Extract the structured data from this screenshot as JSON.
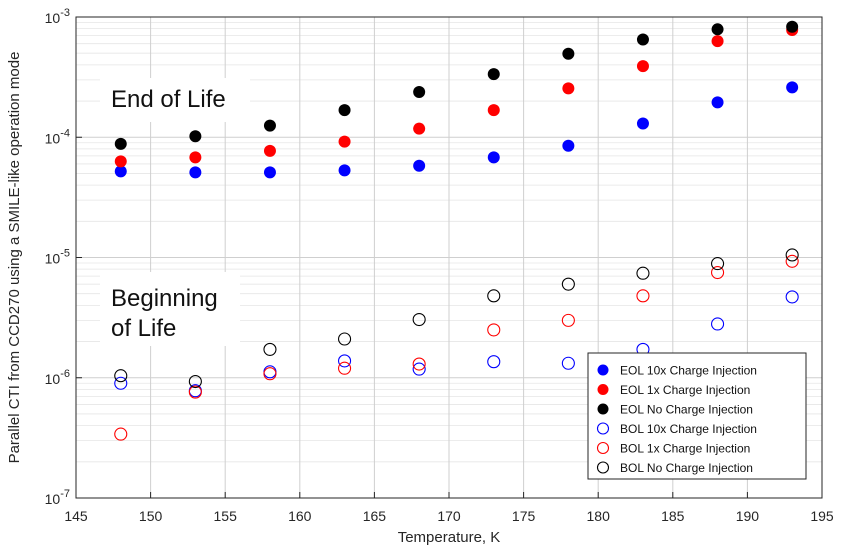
{
  "chart_data": {
    "type": "scatter",
    "xlabel": "Temperature, K",
    "ylabel": "Parallel CTI from CCD270 using a SMILE-like operation mode",
    "xlim": [
      145,
      195
    ],
    "ylim": [
      1e-07,
      0.001
    ],
    "yscale": "log",
    "grid": true,
    "legend_position": "bottom-right",
    "x_ticks": [
      "145",
      "150",
      "155",
      "160",
      "165",
      "170",
      "175",
      "180",
      "185",
      "190",
      "195"
    ],
    "y_ticks": [
      {
        "base": "10",
        "exp": "-7"
      },
      {
        "base": "10",
        "exp": "-6"
      },
      {
        "base": "10",
        "exp": "-5"
      },
      {
        "base": "10",
        "exp": "-4"
      },
      {
        "base": "10",
        "exp": "-3"
      }
    ],
    "annotations": [
      {
        "lines": [
          "End of Life"
        ]
      },
      {
        "lines": [
          "Beginning",
          "of Life"
        ]
      }
    ],
    "x": [
      148,
      153,
      158,
      163,
      168,
      173,
      178,
      183,
      188,
      193
    ],
    "series": [
      {
        "name": "EOL 10x Charge Injection",
        "color": "#0000ff",
        "filled": true,
        "values": [
          5.2e-05,
          5.1e-05,
          5.1e-05,
          5.3e-05,
          5.8e-05,
          6.8e-05,
          8.5e-05,
          0.00013,
          0.000195,
          0.00026
        ]
      },
      {
        "name": "EOL 1x Charge Injection",
        "color": "#ff0000",
        "filled": true,
        "values": [
          6.3e-05,
          6.8e-05,
          7.7e-05,
          9.2e-05,
          0.000118,
          0.000168,
          0.000255,
          0.00039,
          0.00063,
          0.00078
        ]
      },
      {
        "name": "EOL No Charge Injection",
        "color": "#000000",
        "filled": true,
        "values": [
          8.8e-05,
          0.000102,
          0.000125,
          0.000168,
          0.000238,
          0.000335,
          0.000495,
          0.00065,
          0.00079,
          0.00083
        ]
      },
      {
        "name": "BOL 10x Charge Injection",
        "color": "#0000ff",
        "filled": false,
        "values": [
          9e-07,
          7.8e-07,
          1.12e-06,
          1.38e-06,
          1.18e-06,
          1.36e-06,
          1.32e-06,
          1.72e-06,
          2.8e-06,
          4.7e-06
        ]
      },
      {
        "name": "BOL 1x Charge Injection",
        "color": "#ff0000",
        "filled": false,
        "values": [
          3.4e-07,
          7.6e-07,
          1.08e-06,
          1.2e-06,
          1.3e-06,
          2.5e-06,
          3e-06,
          4.8e-06,
          7.5e-06,
          9.3e-06
        ]
      },
      {
        "name": "BOL No Charge Injection",
        "color": "#000000",
        "filled": false,
        "values": [
          1.04e-06,
          9.3e-07,
          1.72e-06,
          2.1e-06,
          3.05e-06,
          4.8e-06,
          6e-06,
          7.4e-06,
          8.9e-06,
          1.05e-05
        ]
      }
    ]
  }
}
